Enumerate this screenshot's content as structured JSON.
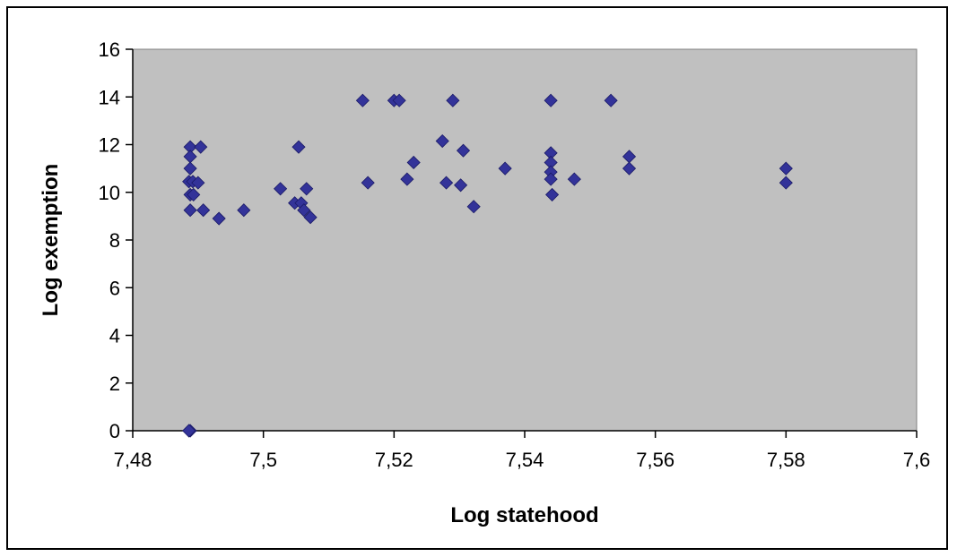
{
  "chart_data": {
    "type": "scatter",
    "title": "",
    "xlabel": "Log statehood",
    "ylabel": "Log exemption",
    "xlim": [
      7.48,
      7.6
    ],
    "ylim": [
      0,
      16
    ],
    "x_ticks": [
      7.48,
      7.5,
      7.52,
      7.54,
      7.56,
      7.58,
      7.6
    ],
    "x_tick_labels": [
      "7,48",
      "7,5",
      "7,52",
      "7,54",
      "7,56",
      "7,58",
      "7,6"
    ],
    "y_ticks": [
      0,
      2,
      4,
      6,
      8,
      10,
      12,
      14,
      16
    ],
    "y_tick_labels": [
      "0",
      "2",
      "4",
      "6",
      "8",
      "10",
      "12",
      "14",
      "16"
    ],
    "grid": false,
    "legend": "none",
    "colors": {
      "plot_background": "#c0c0c0",
      "marker": "#333399"
    },
    "series": [
      {
        "marker": "diamond",
        "points": [
          [
            7.4888,
            0.0
          ],
          [
            7.4886,
            0.0
          ],
          [
            7.4888,
            11.9
          ],
          [
            7.4888,
            11.5
          ],
          [
            7.4888,
            11.0
          ],
          [
            7.4886,
            10.45
          ],
          [
            7.4892,
            10.45
          ],
          [
            7.4888,
            9.9
          ],
          [
            7.4893,
            9.9
          ],
          [
            7.4888,
            9.25
          ],
          [
            7.49,
            10.4
          ],
          [
            7.4904,
            11.9
          ],
          [
            7.4908,
            9.25
          ],
          [
            7.4932,
            8.9
          ],
          [
            7.497,
            9.25
          ],
          [
            7.5026,
            10.15
          ],
          [
            7.5048,
            9.55
          ],
          [
            7.5054,
            11.9
          ],
          [
            7.5058,
            9.55
          ],
          [
            7.5062,
            9.25
          ],
          [
            7.5066,
            10.15
          ],
          [
            7.5072,
            8.95
          ],
          [
            7.5152,
            13.85
          ],
          [
            7.516,
            10.4
          ],
          [
            7.52,
            13.85
          ],
          [
            7.5208,
            13.85
          ],
          [
            7.522,
            10.55
          ],
          [
            7.523,
            11.25
          ],
          [
            7.5274,
            12.15
          ],
          [
            7.528,
            10.4
          ],
          [
            7.529,
            13.85
          ],
          [
            7.5302,
            10.3
          ],
          [
            7.5306,
            11.75
          ],
          [
            7.5322,
            9.4
          ],
          [
            7.537,
            11.0
          ],
          [
            7.544,
            13.85
          ],
          [
            7.544,
            11.65
          ],
          [
            7.544,
            11.25
          ],
          [
            7.544,
            10.85
          ],
          [
            7.544,
            10.55
          ],
          [
            7.5442,
            9.9
          ],
          [
            7.5476,
            10.55
          ],
          [
            7.5532,
            13.85
          ],
          [
            7.556,
            11.5
          ],
          [
            7.556,
            11.0
          ],
          [
            7.58,
            11.0
          ],
          [
            7.58,
            10.4
          ]
        ]
      }
    ]
  }
}
